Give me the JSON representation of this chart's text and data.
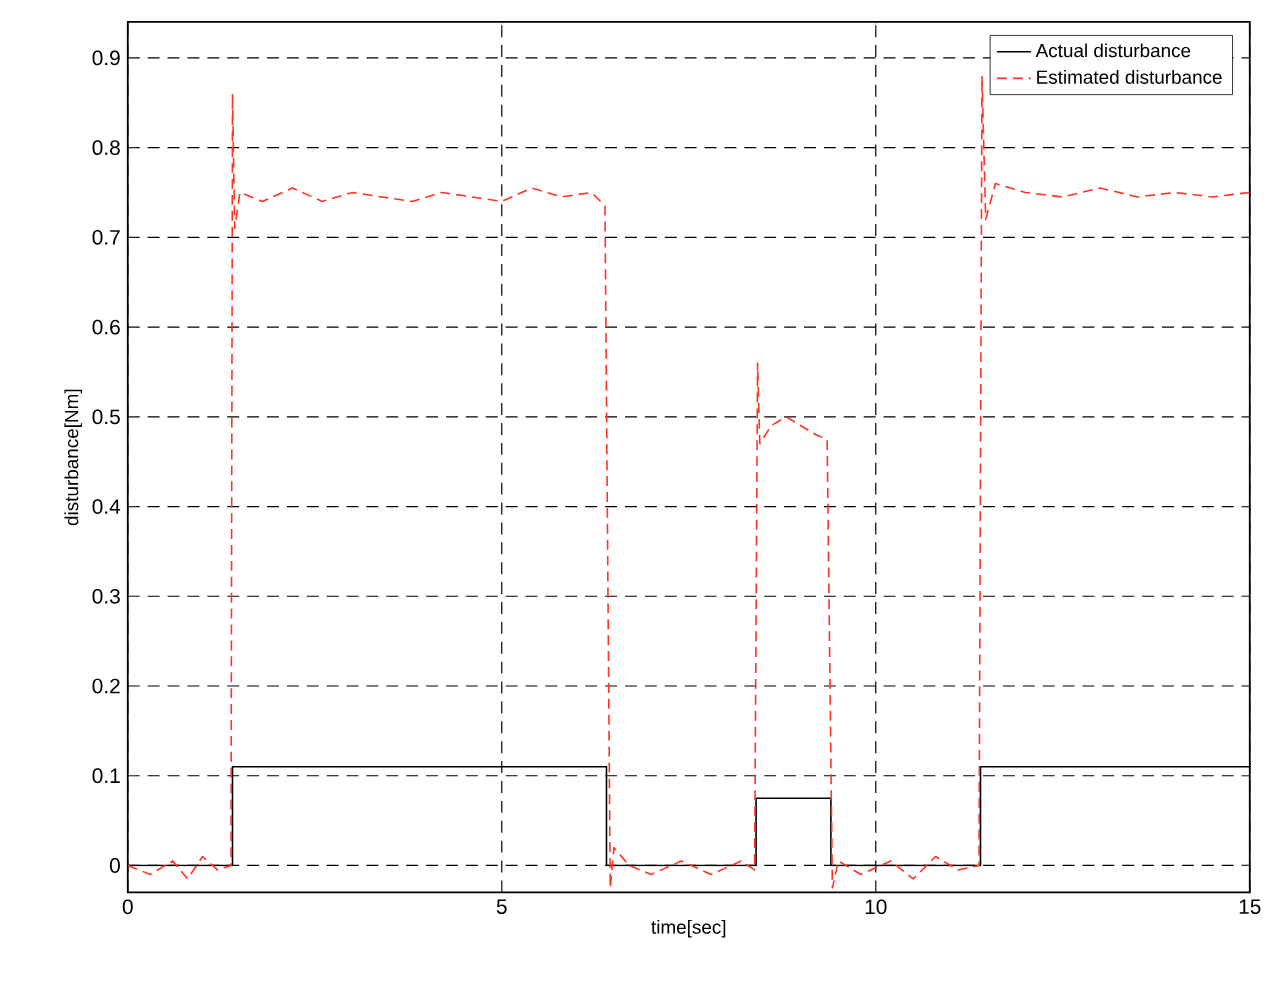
{
  "chart_data": {
    "type": "line",
    "xlabel": "time[sec]",
    "ylabel": "disturbance[Nm]",
    "xlim": [
      0,
      15
    ],
    "ylim": [
      -0.03,
      0.94
    ],
    "xticks": [
      0,
      5,
      10,
      15
    ],
    "yticks": [
      0,
      0.1,
      0.2,
      0.3,
      0.4,
      0.5,
      0.6,
      0.7,
      0.8,
      0.9
    ],
    "grid": true,
    "legend": "top right",
    "series": [
      {
        "name": "Actual disturbance",
        "color": "#000000",
        "line_style": "solid",
        "x": [
          0,
          1.4,
          1.4,
          6.4,
          6.4,
          8.4,
          8.4,
          9.4,
          9.4,
          11.4,
          11.4,
          15
        ],
        "values": [
          0,
          0,
          0.11,
          0.11,
          0,
          0,
          0.075,
          0.075,
          0,
          0,
          0.11,
          0.11
        ]
      },
      {
        "name": "Estimated disturbance",
        "color": "#ff3322",
        "line_style": "dashed",
        "x": [
          0,
          0.3,
          0.6,
          0.8,
          1.0,
          1.2,
          1.38,
          1.4,
          1.43,
          1.5,
          1.8,
          2.2,
          2.6,
          3.0,
          3.4,
          3.8,
          4.2,
          4.6,
          5.0,
          5.4,
          5.8,
          6.2,
          6.38,
          6.45,
          6.5,
          6.7,
          7.0,
          7.4,
          7.8,
          8.2,
          8.38,
          8.42,
          8.45,
          8.6,
          8.8,
          9.0,
          9.2,
          9.35,
          9.42,
          9.5,
          9.8,
          10.2,
          10.5,
          10.8,
          11.1,
          11.38,
          11.42,
          11.47,
          11.6,
          12.0,
          12.5,
          13.0,
          13.5,
          14.0,
          14.5,
          15.0
        ],
        "values": [
          0,
          -0.01,
          0.005,
          -0.015,
          0.01,
          -0.005,
          0,
          0.86,
          0.71,
          0.75,
          0.74,
          0.755,
          0.74,
          0.75,
          0.745,
          0.74,
          0.75,
          0.745,
          0.74,
          0.755,
          0.745,
          0.75,
          0.735,
          -0.025,
          0.02,
          0,
          -0.01,
          0.005,
          -0.01,
          0.005,
          -0.005,
          0.56,
          0.47,
          0.49,
          0.5,
          0.49,
          0.48,
          0.475,
          -0.025,
          0.005,
          -0.01,
          0.005,
          -0.015,
          0.01,
          -0.005,
          0,
          0.88,
          0.72,
          0.76,
          0.75,
          0.745,
          0.755,
          0.745,
          0.75,
          0.745,
          0.75
        ]
      }
    ]
  }
}
